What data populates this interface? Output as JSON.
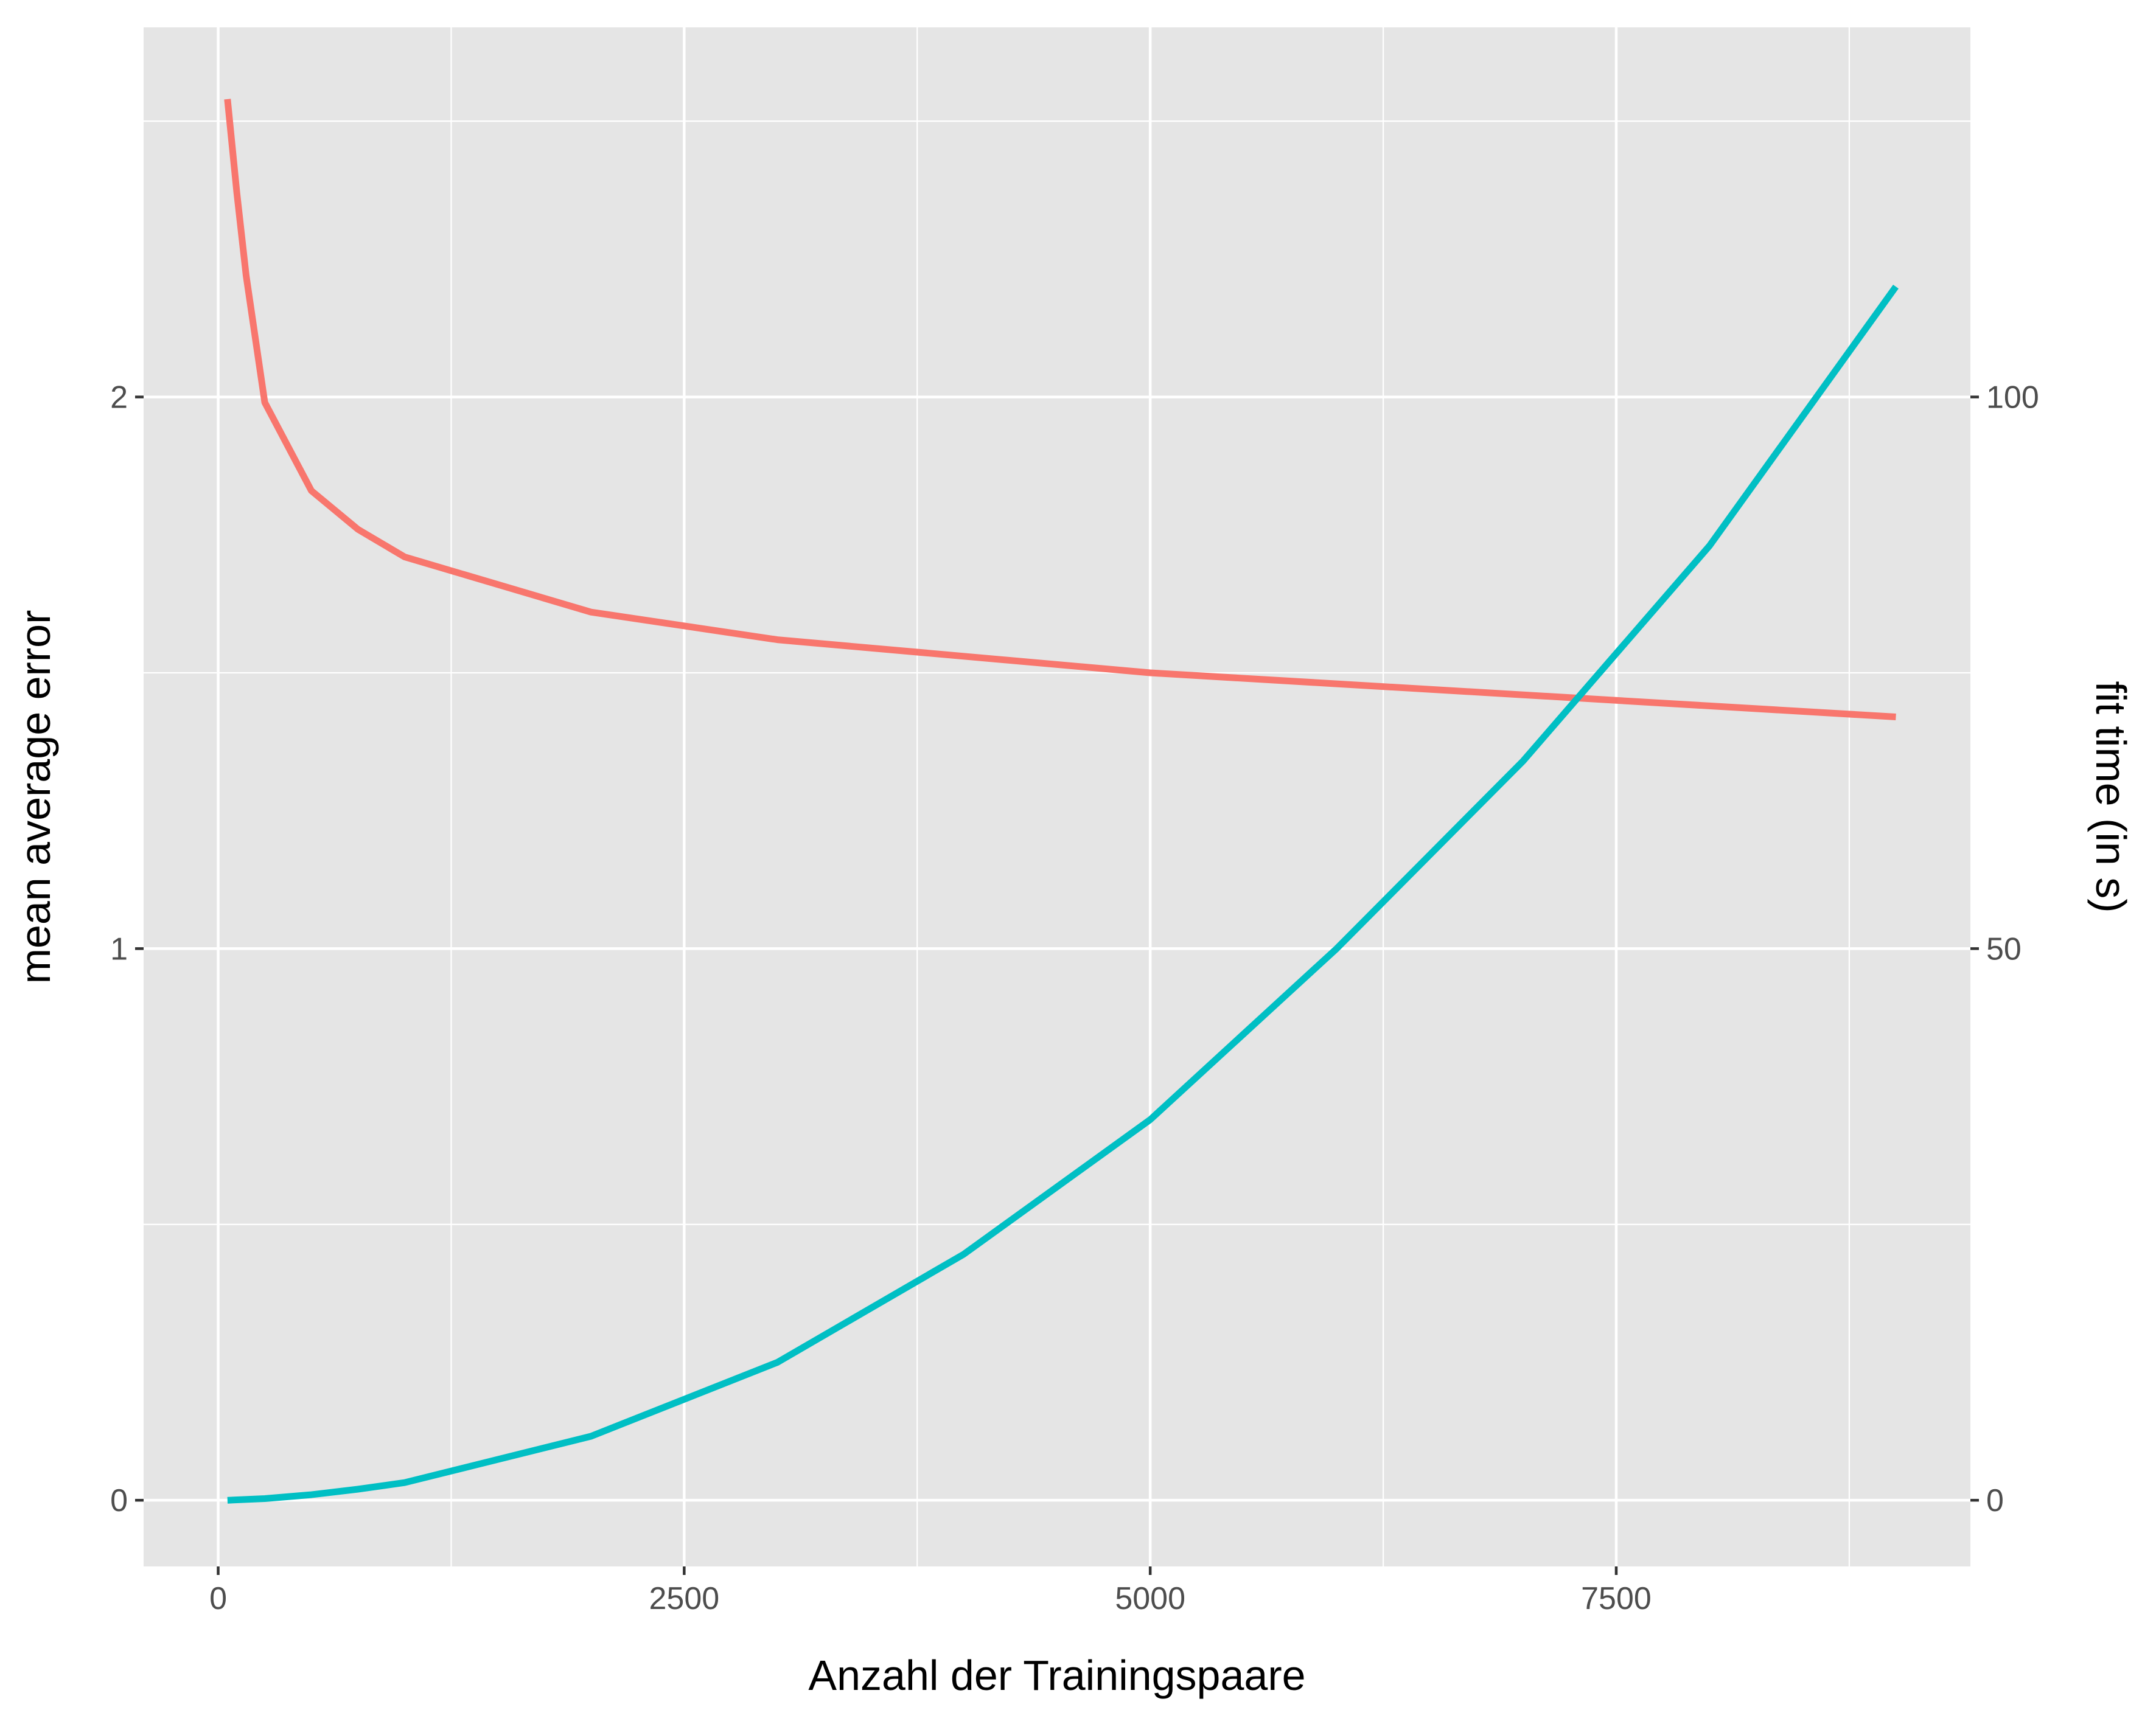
{
  "chart_data": {
    "type": "line",
    "title": "",
    "xlabel": "Anzahl der Trainingspaare",
    "ylabel": "mean average error",
    "y2label": "fit time (in s)",
    "xlim": [
      -400,
      9400
    ],
    "ylim": [
      -0.12,
      2.67
    ],
    "y2lim": [
      -6,
      133.5
    ],
    "grid": true,
    "legend": "none",
    "x_ticks": [
      "0",
      "2500",
      "5000",
      "7500"
    ],
    "x_tick_values": [
      0,
      2500,
      5000,
      7500
    ],
    "y_ticks": [
      "0",
      "1",
      "2"
    ],
    "y_tick_values": [
      0,
      1,
      2
    ],
    "y2_ticks": [
      "0",
      "50",
      "100"
    ],
    "y2_tick_values": [
      0,
      50,
      100
    ],
    "series": [
      {
        "axis": "left",
        "color": "#F8766D",
        "x": [
          50,
          100,
          150,
          250,
          500,
          750,
          1000,
          2000,
          3000,
          4000,
          5000,
          6000,
          7000,
          8000,
          9000
        ],
        "values": [
          2.54,
          2.37,
          2.22,
          1.99,
          1.83,
          1.76,
          1.71,
          1.61,
          1.56,
          1.53,
          1.5,
          1.48,
          1.46,
          1.44,
          1.42
        ]
      },
      {
        "axis": "right",
        "color": "#00BFC4",
        "x": [
          50,
          250,
          500,
          750,
          1000,
          2000,
          3000,
          4000,
          5000,
          6000,
          7000,
          8000,
          9000
        ],
        "values": [
          0.0,
          0.15,
          0.5,
          1.0,
          1.6,
          5.8,
          12.5,
          22.3,
          34.5,
          50.0,
          67.0,
          86.5,
          110.0
        ]
      }
    ]
  }
}
